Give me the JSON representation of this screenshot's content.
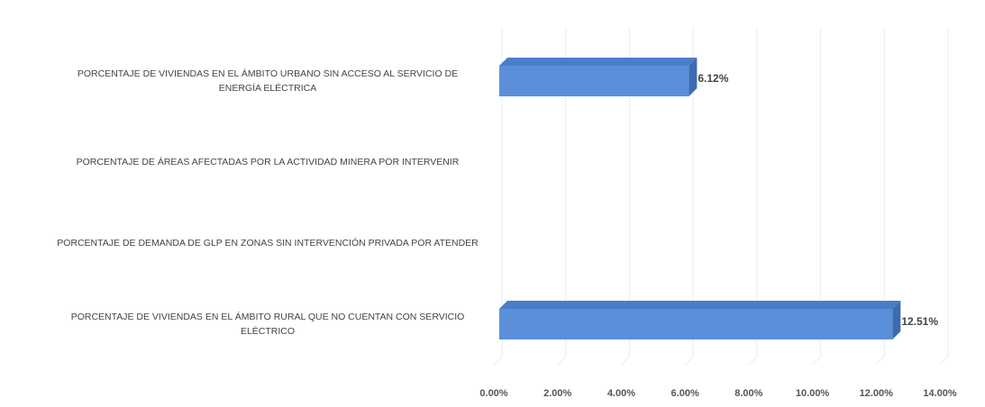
{
  "chart_data": {
    "type": "bar",
    "orientation": "horizontal",
    "categories": [
      "PORCENTAJE DE VIVIENDAS EN EL ÁMBITO URBANO SIN ACCESO AL SERVICIO DE ENERGÍA ELÉCTRICA",
      "PORCENTAJE DE ÁREAS AFECTADAS POR LA ACTIVIDAD MINERA POR INTERVENIR",
      "PORCENTAJE DE DEMANDA DE GLP EN ZONAS SIN INTERVENCIÓN PRIVADA POR ATENDER",
      "PORCENTAJE DE VIVIENDAS EN EL ÁMBITO RURAL QUE NO CUENTAN CON SERVICIO ELÉCTRICO"
    ],
    "values": [
      6.12,
      null,
      null,
      12.51
    ],
    "value_labels": [
      "6.12%",
      null,
      null,
      "12.51%"
    ],
    "color": "#5b8fd9",
    "xlim": [
      0,
      14
    ],
    "xticks": [
      {
        "value": 0,
        "label": "0.00%"
      },
      {
        "value": 2,
        "label": "2.00%"
      },
      {
        "value": 4,
        "label": "4.00%"
      },
      {
        "value": 6,
        "label": "6.00%"
      },
      {
        "value": 8,
        "label": "8.00%"
      },
      {
        "value": 10,
        "label": "10.00%"
      },
      {
        "value": 12,
        "label": "12.00%"
      },
      {
        "value": 14,
        "label": "14.00%"
      }
    ],
    "grid": true
  }
}
